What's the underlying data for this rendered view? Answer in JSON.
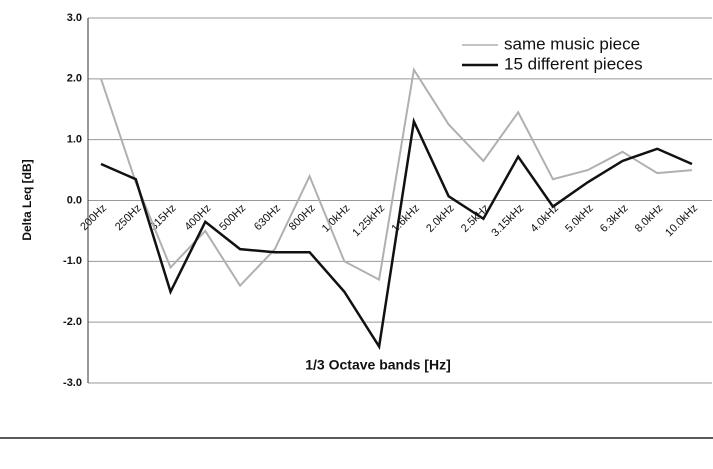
{
  "chart_data": {
    "type": "line",
    "ylabel": "Delta Leq [dB]",
    "xlabel": "1/3 Octave bands [Hz]",
    "categories": [
      "200Hz",
      "250Hz",
      "315Hz",
      "400Hz",
      "500Hz",
      "630Hz",
      "800Hz",
      "1.0kHz",
      "1.25kHz",
      "1.6kHz",
      "2.0kHz",
      "2.5kHz",
      "3.15kHz",
      "4.0kHz",
      "5.0kHz",
      "6.3kHz",
      "8.0kHz",
      "10.0kHz"
    ],
    "series": [
      {
        "name": "same music piece",
        "color": "#b0b0b0",
        "values": [
          2.0,
          0.3,
          -1.1,
          -0.5,
          -1.4,
          -0.8,
          0.4,
          -1.0,
          -1.3,
          2.15,
          1.25,
          0.65,
          1.45,
          0.35,
          0.5,
          0.8,
          0.45,
          0.5
        ]
      },
      {
        "name": "15 different pieces",
        "color": "#111111",
        "values": [
          0.6,
          0.35,
          -1.5,
          -0.35,
          -0.8,
          -0.85,
          -0.85,
          -1.5,
          -2.4,
          1.3,
          0.07,
          -0.3,
          0.72,
          -0.1,
          0.3,
          0.65,
          0.85,
          0.6
        ]
      }
    ],
    "ylim": [
      -3,
      3
    ],
    "yticks": [
      {
        "value": -3,
        "label": "-3.0"
      },
      {
        "value": -2,
        "label": "-2.0"
      },
      {
        "value": -1,
        "label": "-1.0"
      },
      {
        "value": 0,
        "label": "0.0"
      },
      {
        "value": 1,
        "label": "1.0"
      },
      {
        "value": 2,
        "label": "2.0"
      },
      {
        "value": 3,
        "label": "3.0"
      }
    ],
    "grid": true,
    "legend": "upper right"
  }
}
